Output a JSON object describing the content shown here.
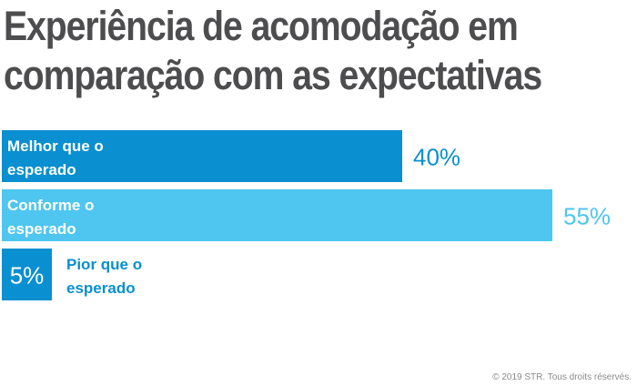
{
  "colors": {
    "title": "#4d4d4f",
    "footer": "#8a8a8a",
    "bar_dark": "#0a8fd0",
    "bar_light": "#4ec6ef",
    "bar_label_inside": "#ffffff"
  },
  "title_lines": [
    "Experiência de acomodação em",
    "comparação com as expectativas"
  ],
  "footer": "© 2019 STR. Tous droits réservés.",
  "chart_data": {
    "type": "bar",
    "orientation": "horizontal",
    "title": "Experiência de acomodação em comparação com as expectativas",
    "categories": [
      "Melhor que o esperado",
      "Conforme o esperado",
      "Pior que o esperado"
    ],
    "category_label_lines": [
      [
        "Melhor que o",
        "esperado"
      ],
      [
        "Conforme o",
        "esperado"
      ],
      [
        "Pior que o",
        "esperado"
      ]
    ],
    "values": [
      40,
      55,
      5
    ],
    "value_labels": [
      "40%",
      "55%",
      "5%"
    ],
    "bar_colors": [
      "#0a8fd0",
      "#4ec6ef",
      "#0a8fd0"
    ],
    "value_label_colors": [
      "#0a8fd0",
      "#4ec6ef",
      "#ffffff"
    ],
    "xlim": [
      0,
      100
    ],
    "grid": false,
    "legend": "none"
  }
}
